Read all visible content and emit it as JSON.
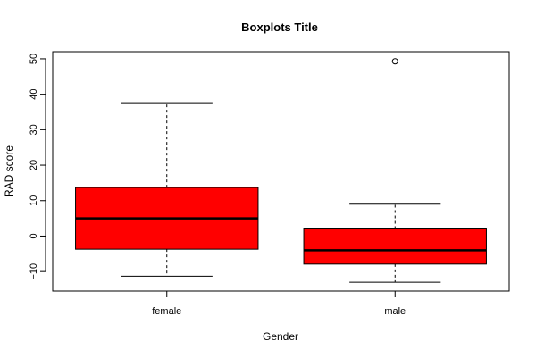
{
  "chart_data": {
    "type": "boxplot",
    "title": "Boxplots Title",
    "xlabel": "Gender",
    "ylabel": "RAD score",
    "ylim": [
      -15.5,
      52
    ],
    "yticks": [
      -10,
      0,
      10,
      20,
      30,
      40,
      50
    ],
    "grid": false,
    "box_color": "#ff0000",
    "categories": [
      "female",
      "male"
    ],
    "boxes": [
      {
        "category": "female",
        "whisker_low": -11.3,
        "q1": -3.7,
        "median": 5.0,
        "q3": 13.7,
        "whisker_high": 37.6,
        "outliers": []
      },
      {
        "category": "male",
        "whisker_low": -13.0,
        "q1": -7.9,
        "median": -4.0,
        "q3": 2.0,
        "whisker_high": 9.0,
        "outliers": [
          49.3
        ]
      }
    ]
  }
}
